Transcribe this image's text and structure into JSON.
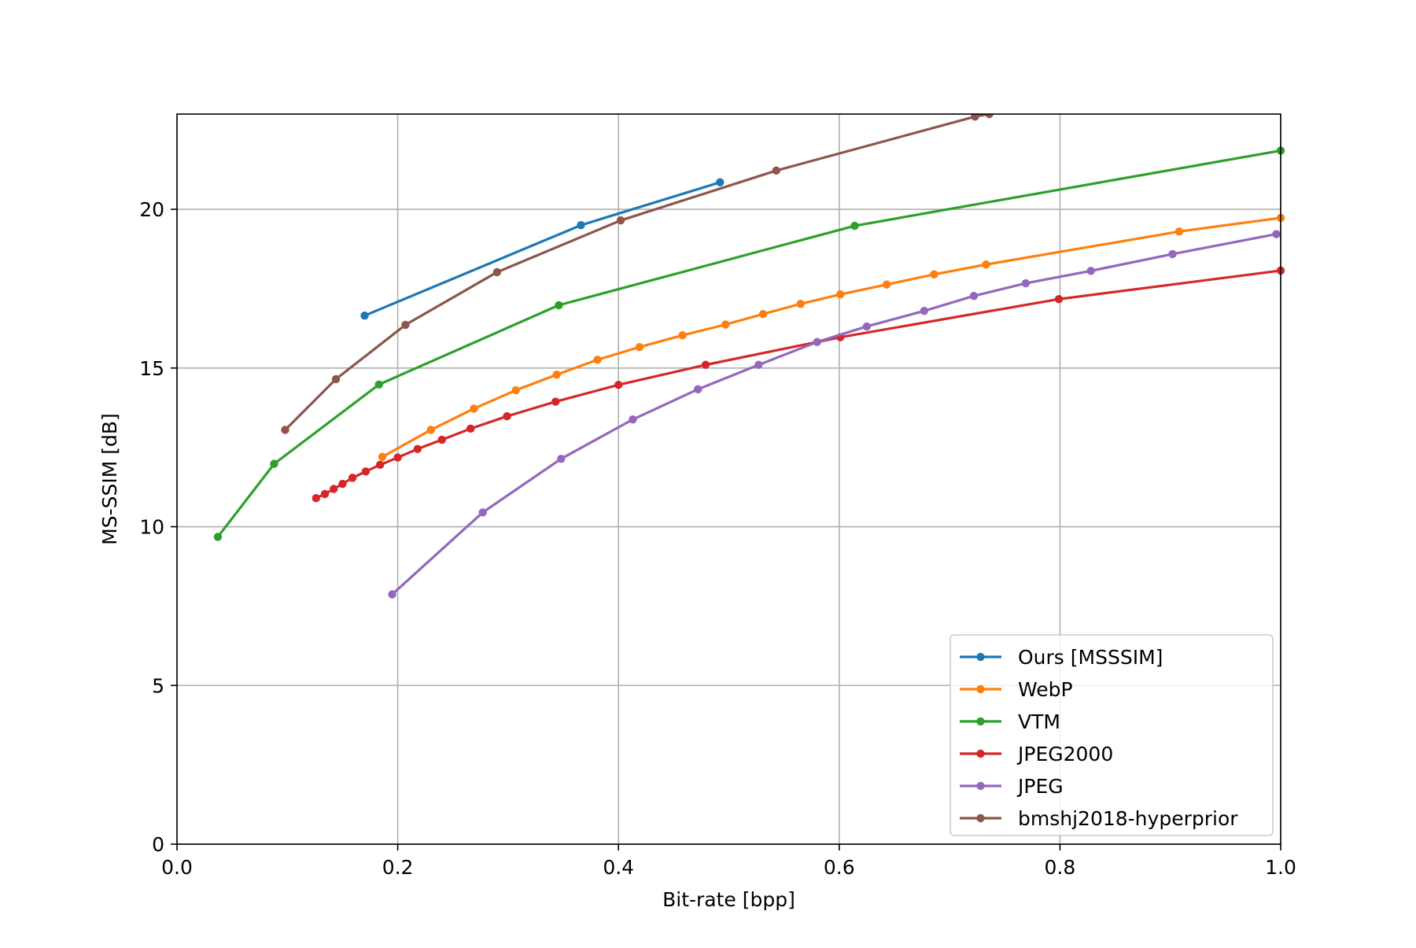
{
  "chart_data": {
    "type": "line",
    "title": "",
    "xlabel": "Bit-rate [bpp]",
    "ylabel": "MS-SSIM [dB]",
    "xlim": [
      0.0,
      1.0
    ],
    "ylim": [
      0,
      23
    ],
    "xticks": [
      0.0,
      0.2,
      0.4,
      0.6,
      0.8,
      1.0
    ],
    "xtick_labels": [
      "0.0",
      "0.2",
      "0.4",
      "0.6",
      "0.8",
      "1.0"
    ],
    "yticks": [
      0,
      5,
      10,
      15,
      20
    ],
    "ytick_labels": [
      "0",
      "5",
      "10",
      "15",
      "20"
    ],
    "grid": true,
    "legend_position": "lower-right",
    "series": [
      {
        "name": "Ours [MSSSIM]",
        "color": "#1f77b4",
        "x": [
          0.17,
          0.366,
          0.492
        ],
        "y": [
          16.65,
          19.5,
          20.85
        ]
      },
      {
        "name": "WebP",
        "color": "#ff7f0e",
        "x": [
          0.186,
          0.23,
          0.269,
          0.307,
          0.344,
          0.381,
          0.419,
          0.458,
          0.497,
          0.531,
          0.565,
          0.601,
          0.643,
          0.686,
          0.733,
          0.908,
          1.0
        ],
        "y": [
          12.2,
          13.05,
          13.72,
          14.3,
          14.79,
          15.26,
          15.66,
          16.03,
          16.37,
          16.7,
          17.02,
          17.32,
          17.63,
          17.95,
          18.26,
          19.3,
          19.73
        ]
      },
      {
        "name": "VTM",
        "color": "#2ca02c",
        "x": [
          0.037,
          0.088,
          0.183,
          0.346,
          0.614,
          1.0
        ],
        "y": [
          9.68,
          11.98,
          14.48,
          16.98,
          19.48,
          21.85
        ]
      },
      {
        "name": "JPEG2000",
        "color": "#d62728",
        "x": [
          0.126,
          0.134,
          0.142,
          0.15,
          0.159,
          0.171,
          0.184,
          0.2,
          0.218,
          0.24,
          0.266,
          0.299,
          0.343,
          0.4,
          0.479,
          0.601,
          0.799,
          1.0
        ],
        "y": [
          10.9,
          11.03,
          11.19,
          11.35,
          11.54,
          11.74,
          11.95,
          12.18,
          12.45,
          12.74,
          13.09,
          13.48,
          13.94,
          14.47,
          15.1,
          15.97,
          17.17,
          18.07
        ]
      },
      {
        "name": "JPEG",
        "color": "#9467bd",
        "x": [
          0.195,
          0.277,
          0.348,
          0.413,
          0.472,
          0.527,
          0.58,
          0.625,
          0.677,
          0.722,
          0.769,
          0.828,
          0.902,
          0.996
        ],
        "y": [
          7.87,
          10.45,
          12.14,
          13.38,
          14.33,
          15.1,
          15.82,
          16.31,
          16.8,
          17.27,
          17.67,
          18.06,
          18.59,
          19.22
        ]
      },
      {
        "name": "bmshj2018-hyperprior",
        "color": "#8c564b",
        "x": [
          0.098,
          0.144,
          0.207,
          0.29,
          0.402,
          0.543,
          0.723,
          0.736
        ],
        "y": [
          13.05,
          14.65,
          16.36,
          18.02,
          19.65,
          21.22,
          22.92,
          23.0
        ]
      }
    ]
  }
}
